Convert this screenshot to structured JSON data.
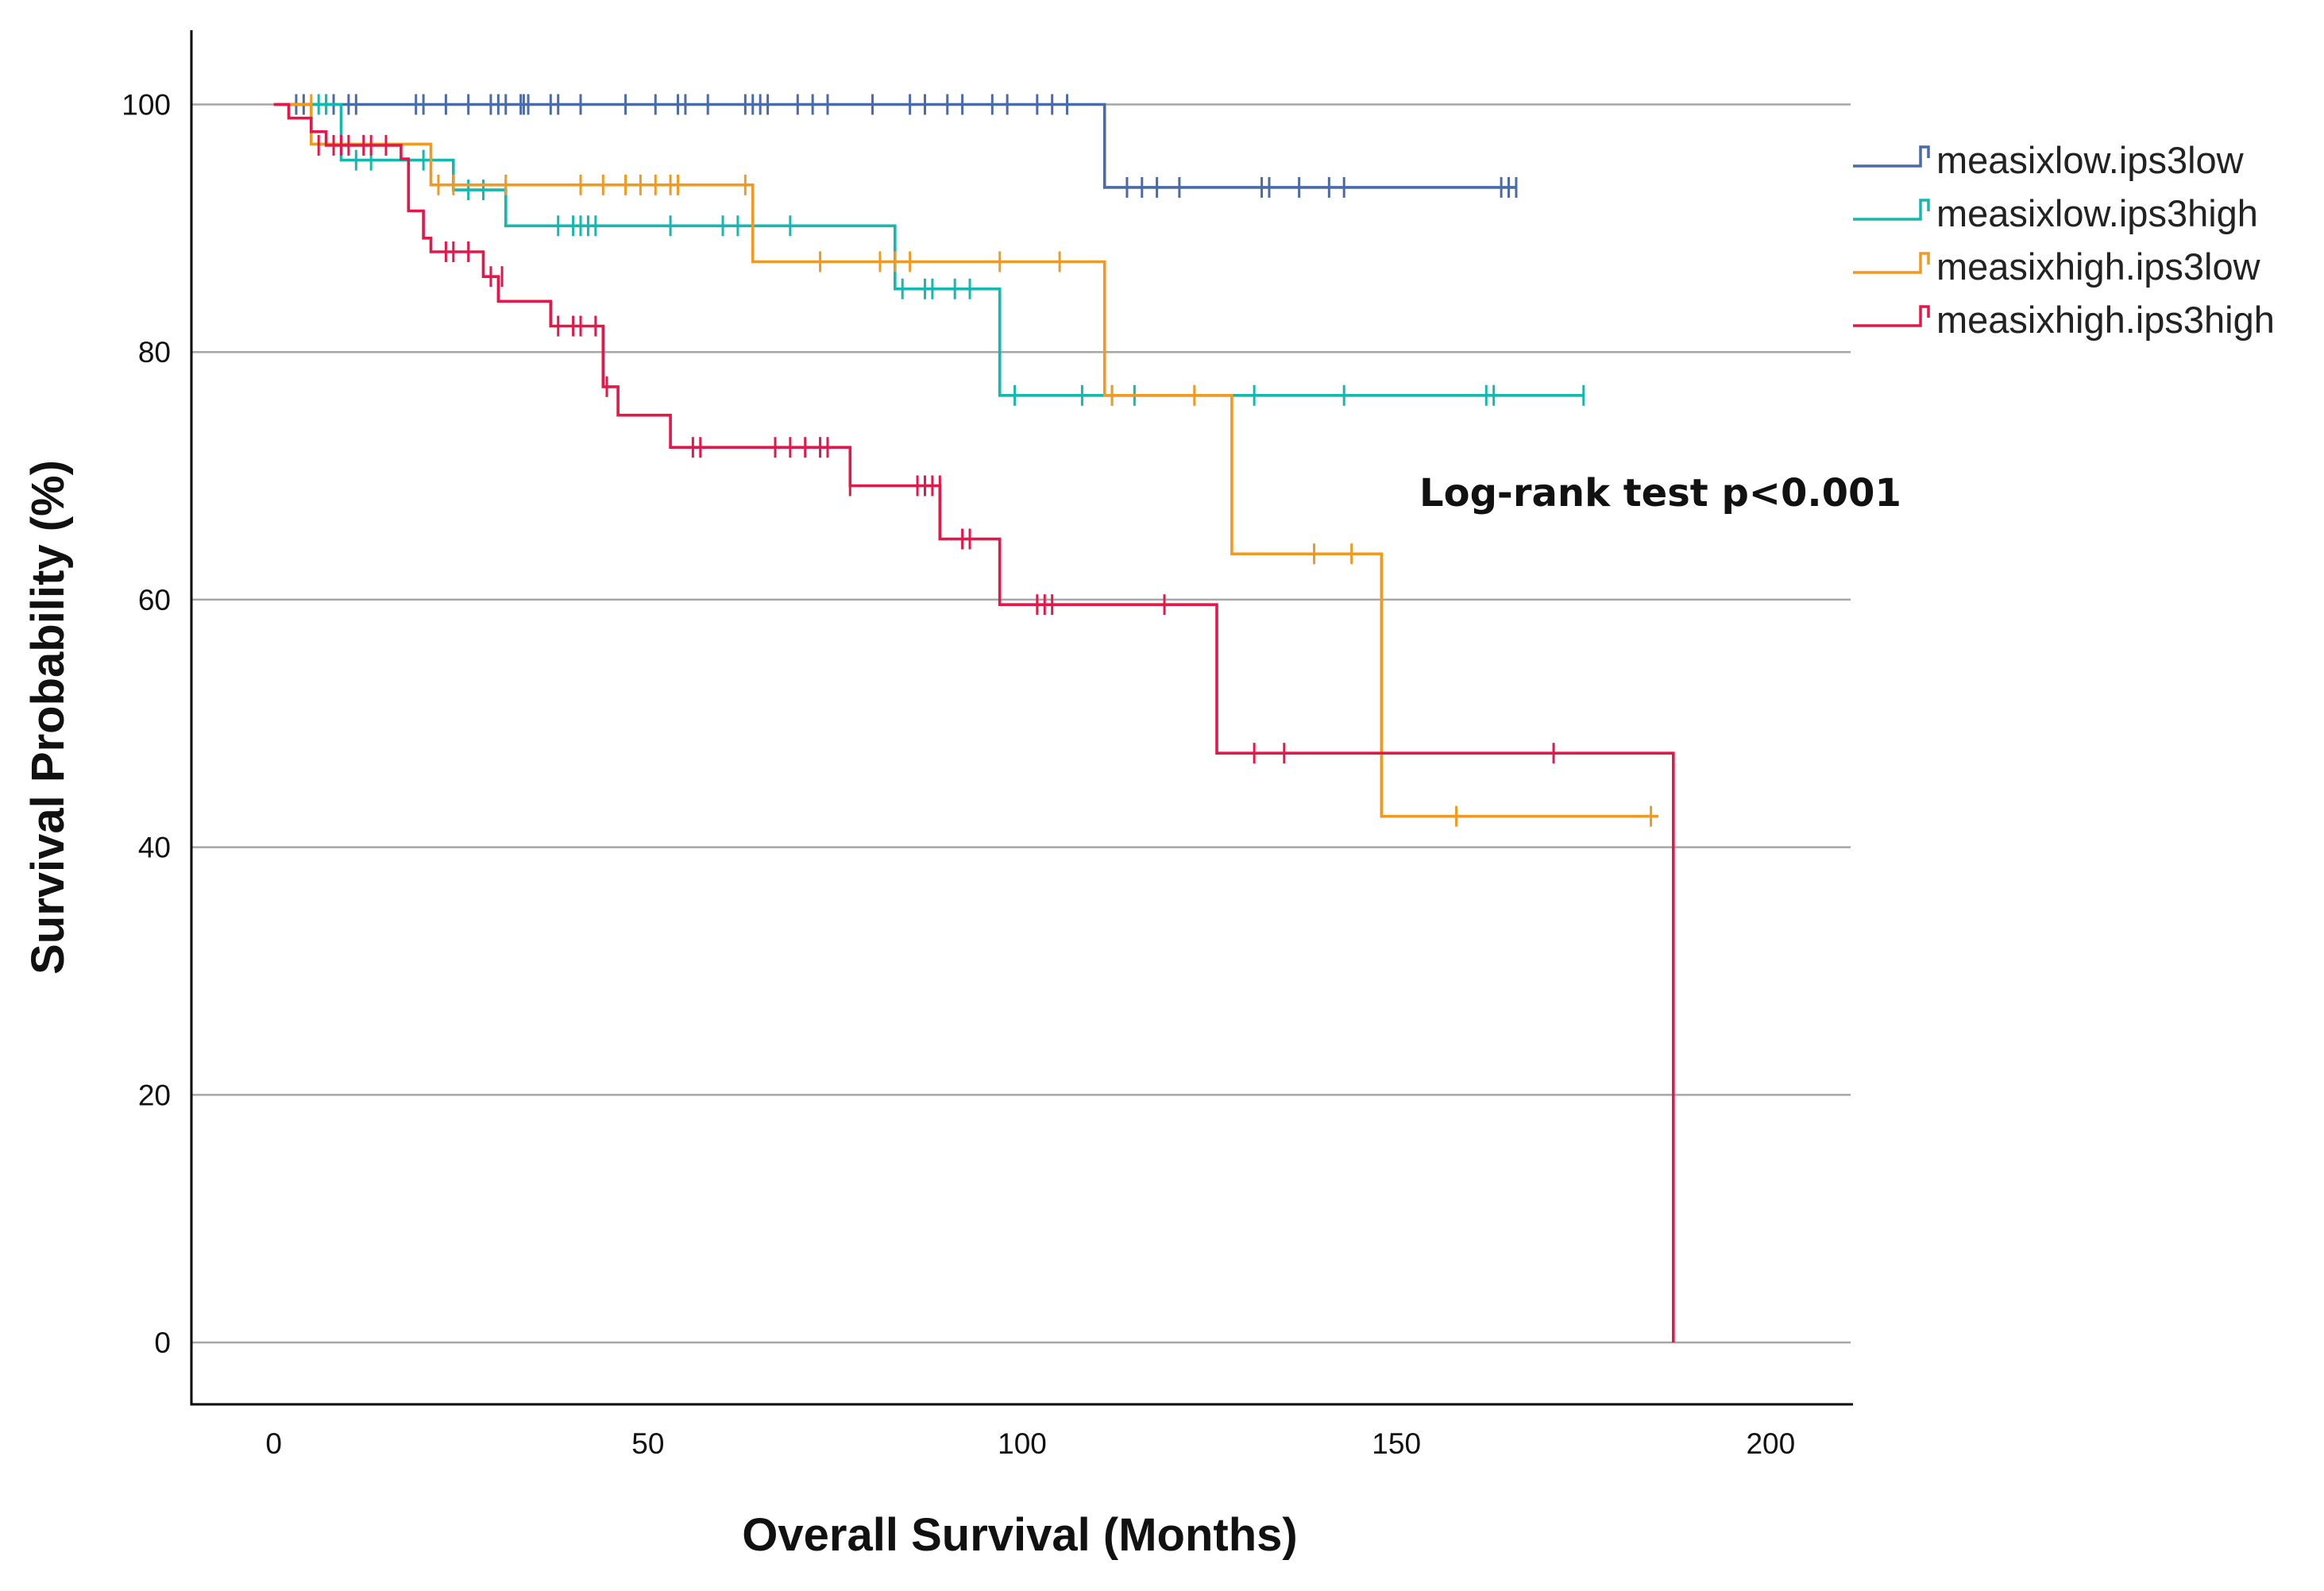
{
  "chart_data": {
    "type": "line",
    "subtype": "kaplan-meier",
    "title": "",
    "xlabel": "Overall Survival (Months)",
    "ylabel": "Survival Probability (%)",
    "xlim": [
      -11,
      211
    ],
    "ylim": [
      -5,
      106
    ],
    "xticks": [
      0,
      50,
      100,
      150,
      200
    ],
    "yticks": [
      0,
      20,
      40,
      60,
      80,
      100
    ],
    "xtick_labels": [
      "0",
      "50",
      "100",
      "150",
      "200"
    ],
    "ytick_labels": [
      "0",
      "20",
      "40",
      "60",
      "80",
      "100"
    ],
    "grid": "horizontal",
    "legend_position": "top-right",
    "annotation": "Log-rank test p<0.001",
    "series": [
      {
        "name": "measixlow.ips3low",
        "color": "#4a6aa8",
        "steps": [
          [
            0,
            100
          ],
          [
            111,
            93.3
          ],
          [
            166,
            93.3
          ]
        ],
        "censors": [
          [
            3,
            100
          ],
          [
            4,
            100
          ],
          [
            7,
            100
          ],
          [
            8,
            100
          ],
          [
            10,
            100
          ],
          [
            11,
            100
          ],
          [
            19,
            100
          ],
          [
            20,
            100
          ],
          [
            23,
            100
          ],
          [
            26,
            100
          ],
          [
            29,
            100
          ],
          [
            30,
            100
          ],
          [
            31,
            100
          ],
          [
            33,
            100
          ],
          [
            33.4,
            100
          ],
          [
            34,
            100
          ],
          [
            37,
            100
          ],
          [
            38,
            100
          ],
          [
            41,
            100
          ],
          [
            47,
            100
          ],
          [
            51,
            100
          ],
          [
            54,
            100
          ],
          [
            55,
            100
          ],
          [
            58,
            100
          ],
          [
            63,
            100
          ],
          [
            64,
            100
          ],
          [
            65,
            100
          ],
          [
            66,
            100
          ],
          [
            70,
            100
          ],
          [
            72,
            100
          ],
          [
            74,
            100
          ],
          [
            80,
            100
          ],
          [
            85,
            100
          ],
          [
            87,
            100
          ],
          [
            90,
            100
          ],
          [
            92,
            100
          ],
          [
            96,
            100
          ],
          [
            98,
            100
          ],
          [
            102,
            100
          ],
          [
            104,
            100
          ],
          [
            106,
            100
          ],
          [
            114,
            93.3
          ],
          [
            116,
            93.3
          ],
          [
            118,
            93.3
          ],
          [
            121,
            93.3
          ],
          [
            132,
            93.3
          ],
          [
            133,
            93.3
          ],
          [
            137,
            93.3
          ],
          [
            141,
            93.3
          ],
          [
            143,
            93.3
          ],
          [
            164,
            93.3
          ],
          [
            165,
            93.3
          ],
          [
            166,
            93.3
          ]
        ]
      },
      {
        "name": "measixlow.ips3high",
        "color": "#13b8ae",
        "steps": [
          [
            0,
            100
          ],
          [
            9,
            95.5
          ],
          [
            24,
            93.1
          ],
          [
            31,
            90.2
          ],
          [
            83,
            85.1
          ],
          [
            97,
            76.5
          ],
          [
            175,
            76.5
          ]
        ],
        "censors": [
          [
            6,
            100
          ],
          [
            7,
            100
          ],
          [
            11,
            95.5
          ],
          [
            13,
            95.5
          ],
          [
            20,
            95.5
          ],
          [
            26,
            93.1
          ],
          [
            28,
            93.1
          ],
          [
            31,
            93.1
          ],
          [
            38,
            90.2
          ],
          [
            40,
            90.2
          ],
          [
            41,
            90.2
          ],
          [
            42,
            90.2
          ],
          [
            43,
            90.2
          ],
          [
            53,
            90.2
          ],
          [
            60,
            90.2
          ],
          [
            62,
            90.2
          ],
          [
            69,
            90.2
          ],
          [
            84,
            85.1
          ],
          [
            87,
            85.1
          ],
          [
            88,
            85.1
          ],
          [
            91,
            85.1
          ],
          [
            93,
            85.1
          ],
          [
            99,
            76.5
          ],
          [
            108,
            76.5
          ],
          [
            112,
            76.5
          ],
          [
            115,
            76.5
          ],
          [
            131,
            76.5
          ],
          [
            143,
            76.5
          ],
          [
            162,
            76.5
          ],
          [
            163,
            76.5
          ],
          [
            175,
            76.5
          ]
        ]
      },
      {
        "name": "measixhigh.ips3low",
        "color": "#f09a23",
        "steps": [
          [
            0,
            100
          ],
          [
            5,
            96.8
          ],
          [
            21,
            93.5
          ],
          [
            64,
            87.3
          ],
          [
            111,
            76.5
          ],
          [
            128,
            63.7
          ],
          [
            148,
            42.5
          ],
          [
            185,
            42.5
          ]
        ],
        "censors": [
          [
            5,
            100
          ],
          [
            22,
            93.5
          ],
          [
            24,
            93.5
          ],
          [
            31,
            93.5
          ],
          [
            41,
            93.5
          ],
          [
            44,
            93.5
          ],
          [
            47,
            93.5
          ],
          [
            49,
            93.5
          ],
          [
            51,
            93.5
          ],
          [
            53,
            93.5
          ],
          [
            54,
            93.5
          ],
          [
            63,
            93.5
          ],
          [
            73,
            87.3
          ],
          [
            81,
            87.3
          ],
          [
            83,
            87.3
          ],
          [
            85,
            87.3
          ],
          [
            97,
            87.3
          ],
          [
            105,
            87.3
          ],
          [
            112,
            76.5
          ],
          [
            123,
            76.5
          ],
          [
            139,
            63.7
          ],
          [
            144,
            63.7
          ],
          [
            158,
            42.5
          ],
          [
            184,
            42.5
          ]
        ]
      },
      {
        "name": "measixhigh.ips3high",
        "color": "#e3184a",
        "steps": [
          [
            0,
            100
          ],
          [
            2,
            98.9
          ],
          [
            5,
            97.8
          ],
          [
            7,
            96.7
          ],
          [
            17,
            95.6
          ],
          [
            18,
            91.4
          ],
          [
            20,
            89.2
          ],
          [
            21,
            88.1
          ],
          [
            28,
            86.1
          ],
          [
            30,
            84.1
          ],
          [
            37,
            82.1
          ],
          [
            44,
            77.2
          ],
          [
            46,
            74.9
          ],
          [
            53,
            72.3
          ],
          [
            77,
            69.2
          ],
          [
            89,
            64.9
          ],
          [
            97,
            59.6
          ],
          [
            126,
            47.6
          ],
          [
            187,
            47.6
          ],
          [
            187,
            0
          ]
        ],
        "censors": [
          [
            6,
            96.7
          ],
          [
            8,
            96.7
          ],
          [
            9,
            96.7
          ],
          [
            10,
            96.7
          ],
          [
            12,
            96.7
          ],
          [
            13,
            96.7
          ],
          [
            15,
            96.7
          ],
          [
            23,
            88.1
          ],
          [
            24,
            88.1
          ],
          [
            26,
            88.1
          ],
          [
            29,
            86.1
          ],
          [
            30.5,
            86.1
          ],
          [
            38,
            82.1
          ],
          [
            40,
            82.1
          ],
          [
            41,
            82.1
          ],
          [
            43,
            82.1
          ],
          [
            44.5,
            77.2
          ],
          [
            56,
            72.3
          ],
          [
            57,
            72.3
          ],
          [
            67,
            72.3
          ],
          [
            69,
            72.3
          ],
          [
            71,
            72.3
          ],
          [
            73,
            72.3
          ],
          [
            74,
            72.3
          ],
          [
            77,
            69.2
          ],
          [
            86,
            69.2
          ],
          [
            87,
            69.2
          ],
          [
            88,
            69.2
          ],
          [
            89,
            69.2
          ],
          [
            92,
            64.9
          ],
          [
            93,
            64.9
          ],
          [
            102,
            59.6
          ],
          [
            103,
            59.6
          ],
          [
            104,
            59.6
          ],
          [
            119,
            59.6
          ],
          [
            131,
            47.6
          ],
          [
            135,
            47.6
          ],
          [
            171,
            47.6
          ]
        ]
      }
    ]
  }
}
